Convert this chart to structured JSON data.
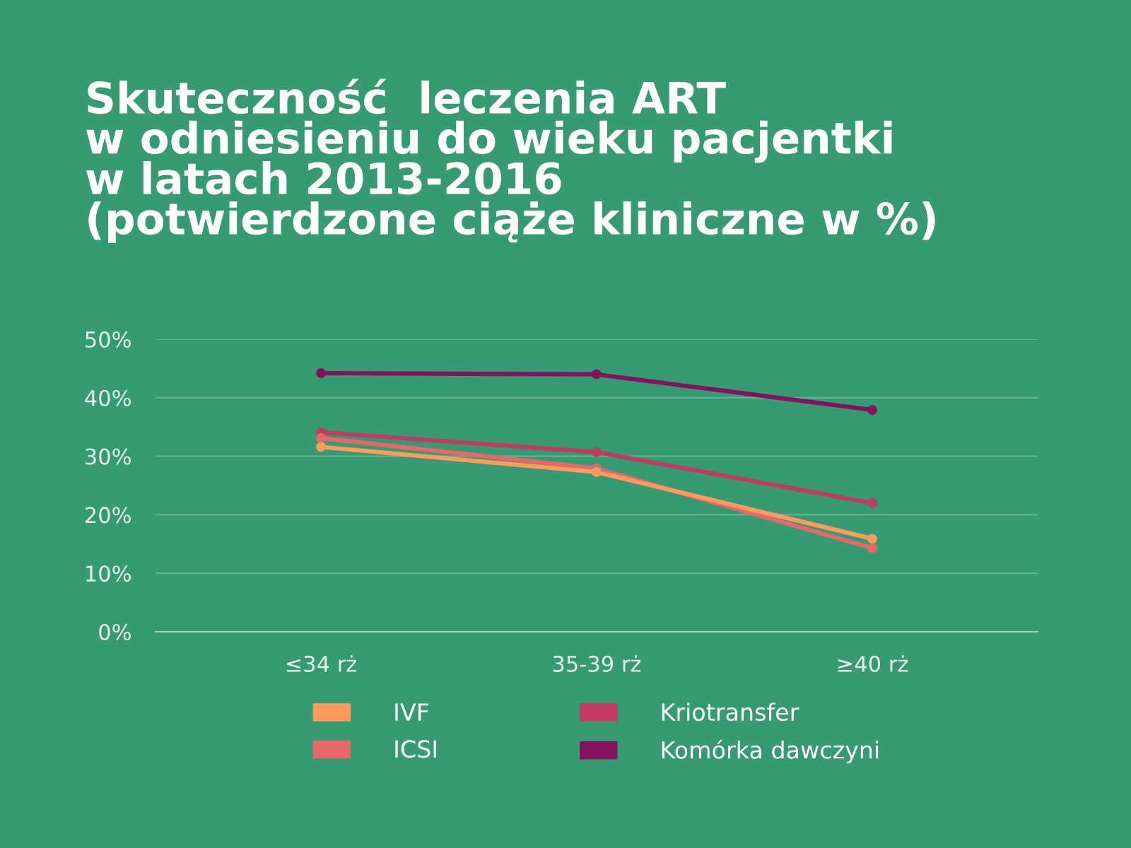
{
  "chart_data": {
    "type": "line",
    "title": "Skuteczność  leczenia ART\nw odniesieniu do wieku pacjentki\nw latach 2013-2016\n(potwierdzone ciąże kliniczne w %)",
    "categories": [
      "≤34 rż",
      "35-39 rż",
      "≥40 rż"
    ],
    "series": [
      {
        "name": "IVF",
        "color": "#fd9a5c",
        "values": [
          31.6,
          27.3,
          15.9
        ]
      },
      {
        "name": "ICSI",
        "color": "#e76868",
        "values": [
          33.1,
          27.9,
          14.3
        ]
      },
      {
        "name": "Kriotransfer",
        "color": "#c23a63",
        "values": [
          34.1,
          30.7,
          22.0
        ]
      },
      {
        "name": "Komórka dawczyni",
        "color": "#83135c",
        "values": [
          44.2,
          44.0,
          37.9
        ]
      }
    ],
    "ylim": [
      0,
      50
    ],
    "yticks": [
      {
        "value": 0,
        "label": "0%"
      },
      {
        "value": 10,
        "label": "10%"
      },
      {
        "value": 20,
        "label": "20%"
      },
      {
        "value": 30,
        "label": "30%"
      },
      {
        "value": 40,
        "label": "40%"
      },
      {
        "value": 50,
        "label": "50%"
      }
    ],
    "grid": "y",
    "legend": "bottom",
    "marker": "circle",
    "line_style": "solid"
  }
}
